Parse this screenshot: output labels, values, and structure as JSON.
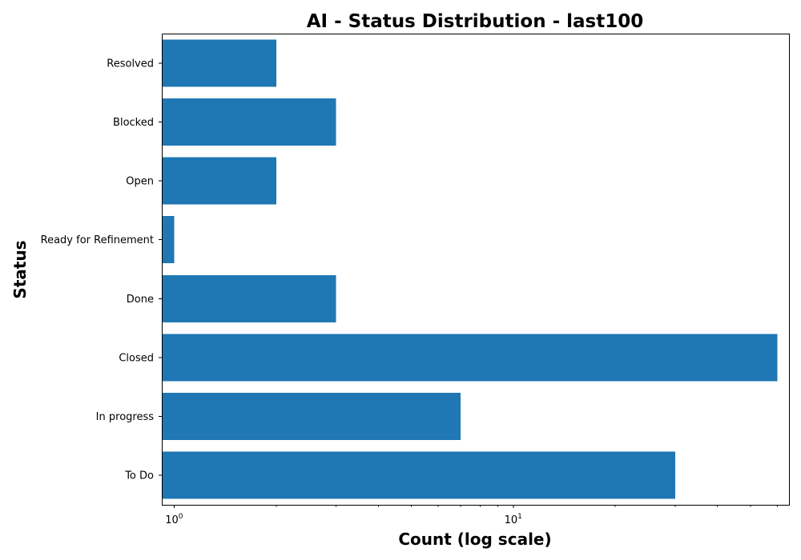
{
  "chart_data": {
    "type": "bar",
    "orientation": "horizontal",
    "title": "AI - Status Distribution - last100",
    "xlabel": "Count (log scale)",
    "ylabel": "Status",
    "xscale": "log",
    "xlim": [
      0.92,
      65
    ],
    "x_ticks": [
      {
        "value": 1,
        "label": "10",
        "exp": "0"
      },
      {
        "value": 10,
        "label": "10",
        "exp": "1"
      }
    ],
    "categories": [
      "To Do",
      "In progress",
      "Closed",
      "Done",
      "Ready for Refinement",
      "Open",
      "Blocked",
      "Resolved"
    ],
    "values": [
      30,
      7,
      60,
      3,
      1,
      2,
      3,
      2
    ],
    "color": "#1f77b4",
    "grid": false,
    "legend": "none"
  }
}
